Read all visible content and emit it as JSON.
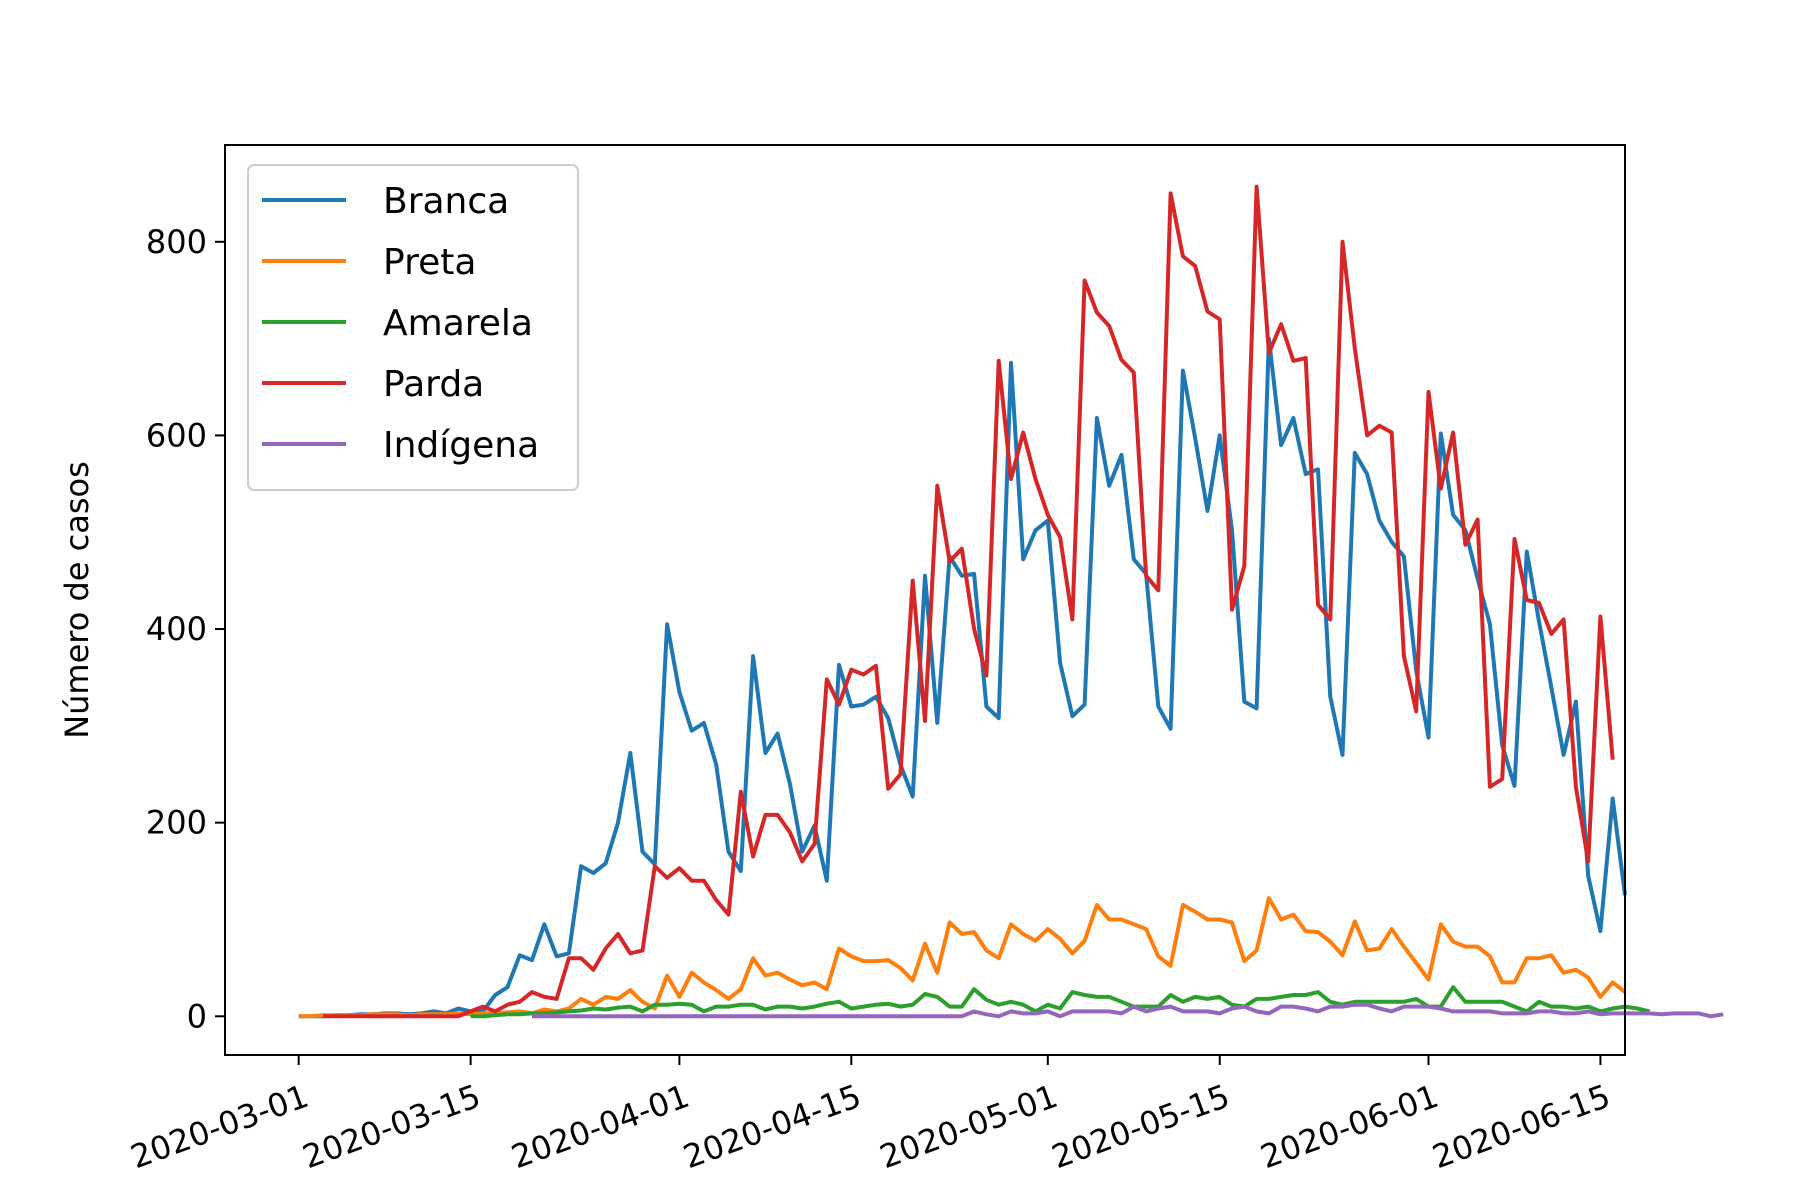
{
  "chart_data": {
    "type": "line",
    "title": "",
    "xlabel": "",
    "ylabel": "Número de casos",
    "ylim": [
      -40,
      900
    ],
    "xlim": [
      "2020-02-24",
      "2020-06-17"
    ],
    "x_ticks": [
      "2020-03-01",
      "2020-03-15",
      "2020-04-01",
      "2020-04-15",
      "2020-05-01",
      "2020-05-15",
      "2020-06-01",
      "2020-06-15"
    ],
    "y_ticks": [
      0,
      200,
      400,
      600,
      800
    ],
    "grid": false,
    "legend": "top-left",
    "series": [
      {
        "name": "Branca",
        "color": "#1f77b4",
        "start": "2020-03-01",
        "values": [
          0,
          0,
          0,
          1,
          1,
          2,
          2,
          3,
          3,
          2,
          3,
          5,
          3,
          8,
          5,
          5,
          22,
          30,
          63,
          58,
          95,
          62,
          65,
          155,
          148,
          158,
          200,
          272,
          170,
          157,
          405,
          335,
          295,
          303,
          260,
          170,
          150,
          372,
          272,
          292,
          240,
          170,
          197,
          140,
          363,
          320,
          322,
          330,
          308,
          260,
          227,
          455,
          303,
          475,
          455,
          457,
          320,
          308,
          675,
          472,
          502,
          512,
          365,
          310,
          322,
          618,
          548,
          580,
          472,
          457,
          320,
          297,
          667,
          597,
          522,
          600,
          502,
          325,
          318,
          700,
          590,
          618,
          560,
          565,
          330,
          270,
          582,
          560,
          512,
          490,
          475,
          357,
          288,
          602,
          518,
          502,
          452,
          405,
          280,
          238,
          480,
          408,
          340,
          270,
          325,
          145,
          88,
          225,
          125
        ]
      },
      {
        "name": "Preta",
        "color": "#ff7f0e",
        "start": "2020-03-01",
        "values": [
          0,
          0,
          1,
          1,
          1,
          1,
          2,
          2,
          2,
          1,
          2,
          2,
          2,
          3,
          2,
          3,
          3,
          4,
          5,
          3,
          7,
          5,
          8,
          18,
          12,
          20,
          18,
          27,
          15,
          8,
          42,
          20,
          45,
          35,
          27,
          18,
          28,
          60,
          42,
          45,
          38,
          32,
          35,
          28,
          70,
          62,
          57,
          57,
          58,
          50,
          37,
          75,
          45,
          97,
          85,
          87,
          68,
          60,
          95,
          85,
          78,
          90,
          80,
          65,
          78,
          115,
          100,
          100,
          95,
          90,
          62,
          52,
          115,
          108,
          100,
          100,
          97,
          57,
          68,
          122,
          100,
          105,
          88,
          87,
          77,
          63,
          98,
          68,
          70,
          90,
          72,
          55,
          38,
          95,
          77,
          72,
          72,
          62,
          35,
          35,
          60,
          60,
          63,
          45,
          48,
          40,
          20,
          35,
          25
        ]
      },
      {
        "name": "Amarela",
        "color": "#2ca02c",
        "start": "2020-03-15",
        "values": [
          0,
          0,
          1,
          2,
          2,
          3,
          3,
          4,
          5,
          6,
          8,
          7,
          9,
          10,
          5,
          12,
          12,
          13,
          12,
          5,
          10,
          10,
          12,
          12,
          7,
          10,
          10,
          8,
          10,
          13,
          15,
          8,
          10,
          12,
          13,
          10,
          12,
          23,
          20,
          10,
          10,
          28,
          17,
          12,
          15,
          12,
          5,
          12,
          8,
          25,
          22,
          20,
          20,
          15,
          10,
          10,
          10,
          22,
          15,
          20,
          18,
          20,
          12,
          10,
          18,
          18,
          20,
          22,
          22,
          25,
          15,
          12,
          15,
          15,
          15,
          15,
          15,
          18,
          10,
          10,
          30,
          15,
          15,
          15,
          15,
          10,
          5,
          15,
          10,
          10,
          8,
          10,
          5,
          8,
          10,
          8,
          5
        ]
      },
      {
        "name": "Parda",
        "color": "#d62728",
        "start": "2020-03-03",
        "values": [
          0,
          0,
          0,
          0,
          0,
          0,
          0,
          0,
          0,
          0,
          0,
          0,
          5,
          10,
          5,
          12,
          15,
          25,
          20,
          18,
          60,
          60,
          48,
          70,
          85,
          65,
          68,
          155,
          143,
          153,
          140,
          140,
          120,
          105,
          232,
          165,
          208,
          208,
          190,
          160,
          178,
          348,
          322,
          358,
          353,
          362,
          235,
          250,
          450,
          305,
          548,
          470,
          483,
          400,
          352,
          677,
          555,
          603,
          555,
          518,
          495,
          410,
          760,
          727,
          713,
          678,
          665,
          455,
          440,
          850,
          785,
          775,
          728,
          720,
          420,
          465,
          857,
          685,
          715,
          677,
          680,
          425,
          410,
          800,
          690,
          600,
          610,
          603,
          372,
          315,
          645,
          545,
          603,
          487,
          513,
          237,
          245,
          493,
          430,
          427,
          395,
          410,
          237,
          160,
          413,
          265
        ]
      },
      {
        "name": "Indígena",
        "color": "#9467bd",
        "start": "2020-03-20",
        "values": [
          0,
          0,
          0,
          0,
          0,
          0,
          0,
          0,
          0,
          0,
          0,
          0,
          0,
          0,
          0,
          0,
          0,
          0,
          0,
          0,
          0,
          0,
          0,
          0,
          0,
          0,
          0,
          0,
          0,
          0,
          0,
          0,
          0,
          0,
          0,
          0,
          5,
          2,
          0,
          5,
          3,
          3,
          5,
          0,
          5,
          5,
          5,
          5,
          3,
          10,
          5,
          8,
          10,
          5,
          5,
          5,
          3,
          8,
          10,
          5,
          3,
          10,
          10,
          8,
          5,
          10,
          10,
          12,
          12,
          8,
          5,
          10,
          10,
          10,
          8,
          5,
          5,
          5,
          5,
          3,
          3,
          3,
          5,
          5,
          3,
          3,
          5,
          2,
          3,
          3,
          3,
          3,
          2,
          3,
          3,
          3,
          0,
          2
        ]
      }
    ]
  }
}
